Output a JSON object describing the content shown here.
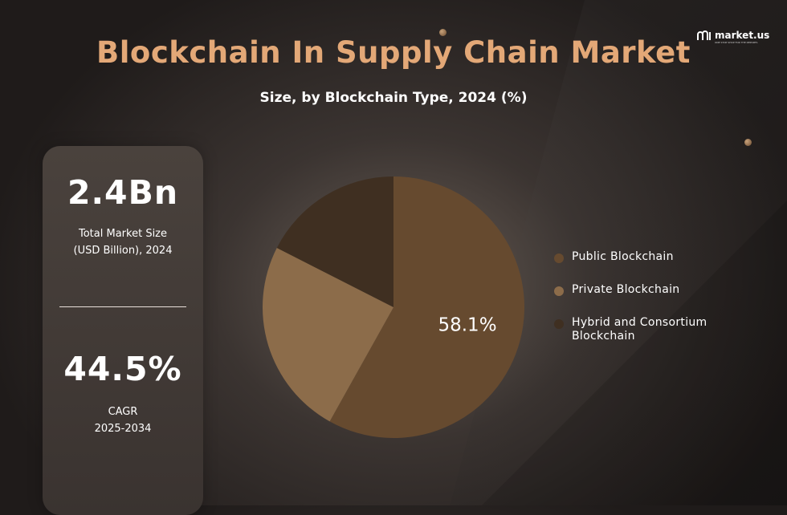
{
  "title": "Blockchain In Supply Chain Market",
  "subtitle": "Size, by Blockchain Type, 2024 (%)",
  "logo": {
    "name": "market.us",
    "tagline": "ONE STOP SHOP FOR THE REPORTS"
  },
  "stats": [
    {
      "value": "2.4Bn",
      "label_line1": "Total Market Size",
      "label_line2": "(USD Billion), 2024"
    },
    {
      "value": "44.5%",
      "label_line1": "CAGR",
      "label_line2": "2025-2034"
    }
  ],
  "chart_data": {
    "type": "pie",
    "title": "Size, by Blockchain Type, 2024 (%)",
    "slices": [
      {
        "name": "Public Blockchain",
        "value": 58.1,
        "color": "#664a2f",
        "label": "58.1%"
      },
      {
        "name": "Private Blockchain",
        "value": 24.4,
        "color": "#8c6c4a",
        "label": ""
      },
      {
        "name": "Hybrid and Consortium Blockchain",
        "value": 17.5,
        "color": "#3f2f21",
        "label": ""
      }
    ],
    "legend_position": "right"
  },
  "colors": {
    "title": "#e3a877",
    "accent": "#664a2f"
  }
}
